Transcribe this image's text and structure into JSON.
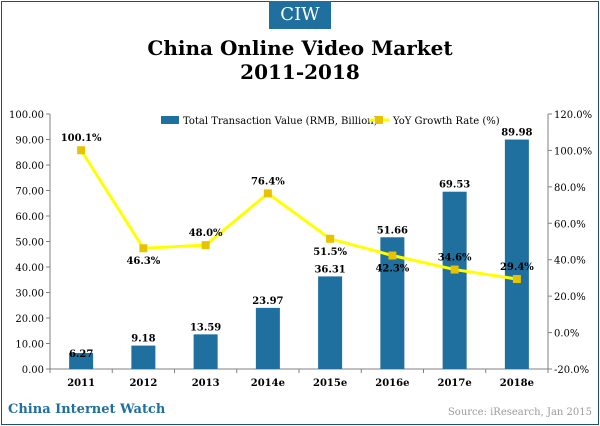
{
  "badge": "CIW",
  "title_line1": "China Online Video Market",
  "title_line2": "2011-2018",
  "footer": {
    "brand": "China Internet Watch",
    "source": "Source: iResearch, Jan 2015"
  },
  "colors": {
    "bar": "#1f6f9f",
    "line": "#ffff00",
    "marker": "#e6c200"
  },
  "chart_data": {
    "type": "bar",
    "categories": [
      "2011",
      "2012",
      "2013",
      "2014e",
      "2015e",
      "2016e",
      "2017e",
      "2018e"
    ],
    "series": [
      {
        "name": "Total Transaction Value (RMB, Billion)",
        "type": "bar",
        "axis": "left",
        "values": [
          6.27,
          9.18,
          13.59,
          23.97,
          36.31,
          51.66,
          69.53,
          89.98
        ],
        "labels": [
          "6.27",
          "9.18",
          "13.59",
          "23.97",
          "36.31",
          "51.66",
          "69.53",
          "89.98"
        ]
      },
      {
        "name": "YoY Growth Rate (%)",
        "type": "line",
        "axis": "right",
        "values": [
          100.1,
          46.3,
          48.0,
          76.4,
          51.5,
          42.3,
          34.6,
          29.4
        ],
        "labels": [
          "100.1%",
          "46.3%",
          "48.0%",
          "76.4%",
          "51.5%",
          "42.3%",
          "34.6%",
          "29.4%"
        ]
      }
    ],
    "ylim_left": [
      0,
      100
    ],
    "ylim_right": [
      -20,
      120
    ],
    "yticks_left": [
      "0.00",
      "10.00",
      "20.00",
      "30.00",
      "40.00",
      "50.00",
      "60.00",
      "70.00",
      "80.00",
      "90.00",
      "100.00"
    ],
    "yticks_right": [
      "-20.0%",
      "0.0%",
      "20.0%",
      "40.0%",
      "60.0%",
      "80.0%",
      "100.0%",
      "120.0%"
    ],
    "grid": false,
    "legend": "top"
  }
}
